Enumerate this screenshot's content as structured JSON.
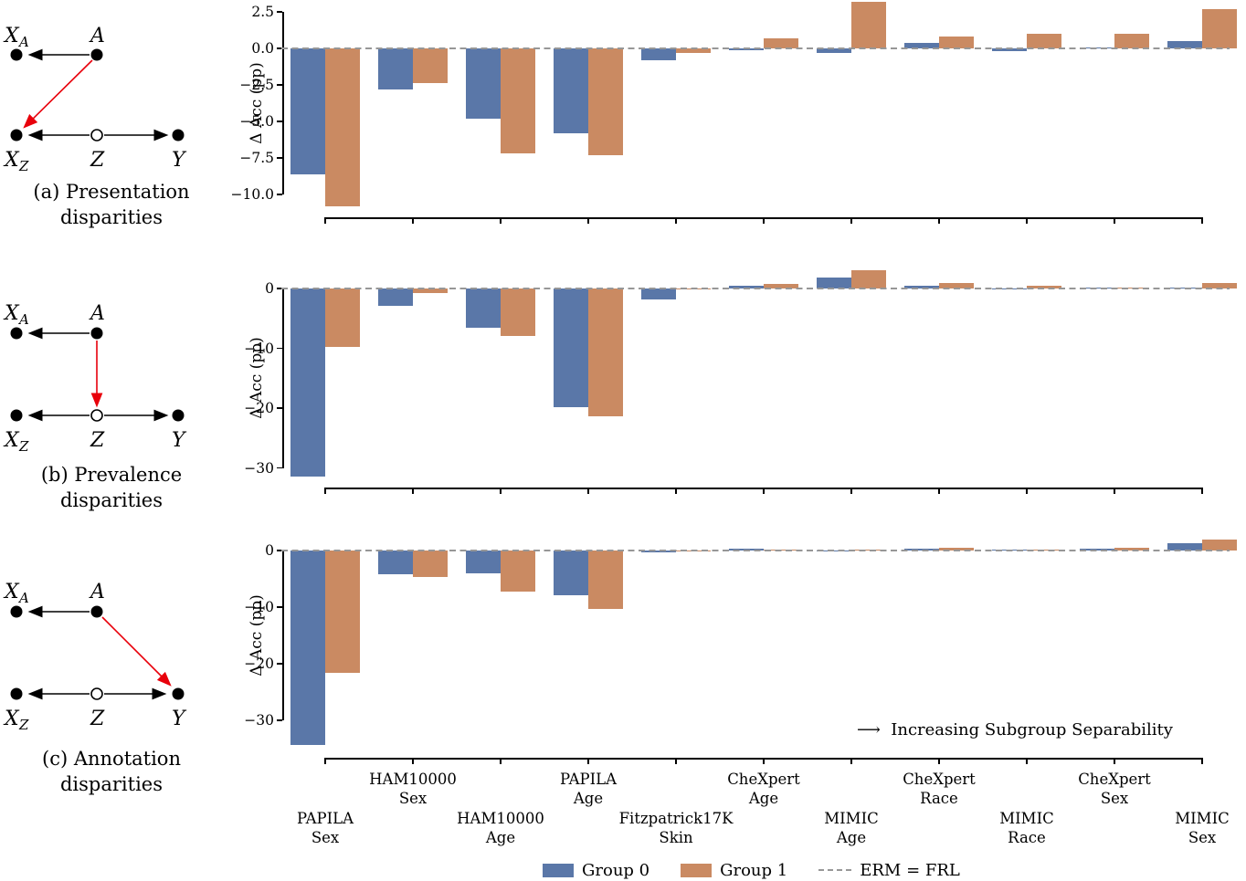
{
  "colors": {
    "group0": "#5a77a8",
    "group1": "#ca8a62",
    "zero_line": "#979797",
    "red_arrow": "#e8000b",
    "black": "#000000"
  },
  "diagrams": {
    "node_labels": {
      "x_main": "X",
      "sub_a": "A",
      "sub_z": "Z",
      "a": "A",
      "z": "Z",
      "y": "Y"
    },
    "a": {
      "caption1": "(a) Presentation",
      "caption2": "disparities",
      "red_edge": "A to X_Z"
    },
    "b": {
      "caption1": "(b) Prevalence",
      "caption2": "disparities",
      "red_edge": "A to Z"
    },
    "c": {
      "caption1": "(c) Annotation",
      "caption2": "disparities",
      "red_edge": "A to Y"
    }
  },
  "x_categories": [
    {
      "name": "PAPILA Sex",
      "l1": "PAPILA",
      "l2": "Sex",
      "row": "low"
    },
    {
      "name": "HAM10000 Sex",
      "l1": "HAM10000",
      "l2": "Sex",
      "row": "high"
    },
    {
      "name": "HAM10000 Age",
      "l1": "HAM10000",
      "l2": "Age",
      "row": "low"
    },
    {
      "name": "PAPILA Age",
      "l1": "PAPILA",
      "l2": "Age",
      "row": "high"
    },
    {
      "name": "Fitzpatrick17K Skin",
      "l1": "Fitzpatrick17K",
      "l2": "Skin",
      "row": "low"
    },
    {
      "name": "CheXpert Age",
      "l1": "CheXpert",
      "l2": "Age",
      "row": "high"
    },
    {
      "name": "MIMIC Age",
      "l1": "MIMIC",
      "l2": "Age",
      "row": "low"
    },
    {
      "name": "CheXpert Race",
      "l1": "CheXpert",
      "l2": "Race",
      "row": "high"
    },
    {
      "name": "MIMIC Race",
      "l1": "MIMIC",
      "l2": "Race",
      "row": "low"
    },
    {
      "name": "CheXpert Sex",
      "l1": "CheXpert",
      "l2": "Sex",
      "row": "high"
    },
    {
      "name": "MIMIC Sex",
      "l1": "MIMIC",
      "l2": "Sex",
      "row": "low"
    }
  ],
  "chart_data": [
    {
      "type": "bar",
      "panel": "presentation-disparities",
      "ylabel": "Δ Acc (pp)",
      "yticks": [
        2.5,
        0.0,
        -2.5,
        -5.0,
        -7.5,
        -10.0
      ],
      "ytick_labels": [
        "2.5",
        "0.0",
        "−2.5",
        "−5.0",
        "−7.5",
        "−10.0"
      ],
      "ylim": [
        -11.6,
        3.3
      ],
      "zero_line": "dashed",
      "series": [
        {
          "name": "Group 0",
          "values": [
            -8.6,
            -2.8,
            -4.8,
            -5.8,
            -0.8,
            -0.1,
            -0.3,
            0.4,
            -0.2,
            0.05,
            0.5
          ]
        },
        {
          "name": "Group 1",
          "values": [
            -10.8,
            -2.4,
            -7.2,
            -7.3,
            -0.3,
            0.7,
            3.2,
            0.8,
            1.0,
            1.0,
            2.7
          ]
        }
      ]
    },
    {
      "type": "bar",
      "panel": "prevalence-disparities",
      "ylabel": "Δ Acc (pp)",
      "yticks": [
        0,
        -10,
        -20,
        -30
      ],
      "ytick_labels": [
        "0",
        "−10",
        "−20",
        "−30"
      ],
      "ylim": [
        -33.5,
        4.0
      ],
      "zero_line": "dashed",
      "series": [
        {
          "name": "Group 0",
          "values": [
            -31.5,
            -2.9,
            -6.6,
            -19.9,
            -1.9,
            0.5,
            1.9,
            0.5,
            -0.1,
            0.05,
            0.1
          ]
        },
        {
          "name": "Group 1",
          "values": [
            -9.8,
            -0.7,
            -8.0,
            -21.3,
            -0.2,
            0.7,
            3.1,
            0.9,
            0.5,
            0.15,
            0.9
          ]
        }
      ]
    },
    {
      "type": "bar",
      "panel": "annotation-disparities",
      "ylabel": "Δ Acc (pp)",
      "yticks": [
        0,
        -10,
        -20,
        -30
      ],
      "ytick_labels": [
        "0",
        "−10",
        "−20",
        "−30"
      ],
      "ylim": [
        -36.6,
        3.7
      ],
      "zero_line": "dashed",
      "series": [
        {
          "name": "Group 0",
          "values": [
            -34.4,
            -4.2,
            -4.0,
            -7.9,
            -0.4,
            0.3,
            -0.1,
            0.25,
            0.1,
            0.35,
            1.3
          ]
        },
        {
          "name": "Group 1",
          "values": [
            -21.6,
            -4.6,
            -7.3,
            -10.4,
            -0.1,
            0.1,
            0.15,
            0.55,
            0.15,
            0.55,
            1.9
          ]
        }
      ]
    }
  ],
  "annotation": {
    "arrow": "⟶",
    "text": "Increasing Subgroup Separability"
  },
  "legend": {
    "group0": "Group 0",
    "group1": "Group 1",
    "erm": "ERM = FRL"
  }
}
